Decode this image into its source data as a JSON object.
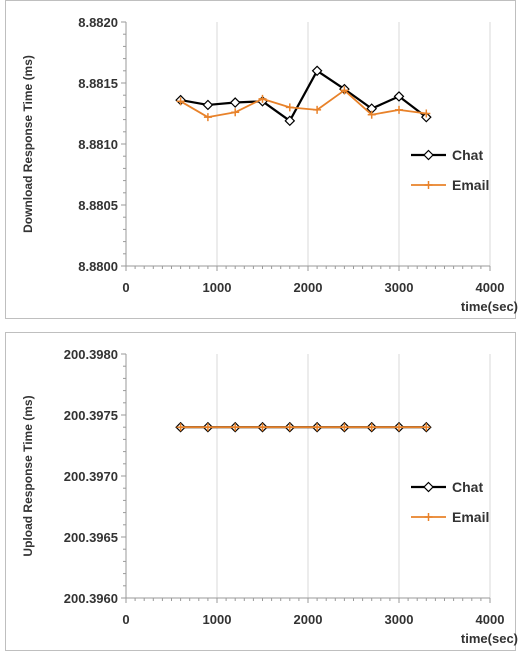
{
  "chart_data": [
    {
      "type": "line",
      "title": "",
      "xlabel": "time(sec)",
      "ylabel": "Download Response Time (ms)",
      "xlim": [
        0,
        4000
      ],
      "ylim": [
        8.88,
        8.882
      ],
      "x_ticks": [
        "0",
        "1000",
        "2000",
        "3000",
        "4000"
      ],
      "y_ticks": [
        "8.8800",
        "8.8805",
        "8.8810",
        "8.8815",
        "8.8820"
      ],
      "grid": "vertical",
      "legend": "right",
      "series": [
        {
          "name": "Chat",
          "color": "#000000",
          "marker": "diamond",
          "x": [
            600,
            900,
            1200,
            1500,
            1800,
            2100,
            2400,
            2700,
            3000,
            3300
          ],
          "values": [
            8.88136,
            8.88132,
            8.88134,
            8.88135,
            8.88119,
            8.8816,
            8.88145,
            8.88129,
            8.88139,
            8.88122
          ]
        },
        {
          "name": "Email",
          "color": "#e8822a",
          "marker": "plus",
          "x": [
            600,
            900,
            1200,
            1500,
            1800,
            2100,
            2400,
            2700,
            3000,
            3300
          ],
          "values": [
            8.88135,
            8.88122,
            8.88126,
            8.88137,
            8.8813,
            8.88128,
            8.88144,
            8.88124,
            8.88128,
            8.88125
          ]
        }
      ]
    },
    {
      "type": "line",
      "title": "",
      "xlabel": "time(sec)",
      "ylabel": "Upload Response Time (ms)",
      "xlim": [
        0,
        4000
      ],
      "ylim": [
        200.396,
        200.398
      ],
      "x_ticks": [
        "0",
        "1000",
        "2000",
        "3000",
        "4000"
      ],
      "y_ticks": [
        "200.3960",
        "200.3965",
        "200.3970",
        "200.3975",
        "200.3980"
      ],
      "grid": "vertical",
      "legend": "right",
      "series": [
        {
          "name": "Chat",
          "color": "#000000",
          "marker": "diamond",
          "x": [
            600,
            900,
            1200,
            1500,
            1800,
            2100,
            2400,
            2700,
            3000,
            3300
          ],
          "values": [
            200.3974,
            200.3974,
            200.3974,
            200.3974,
            200.3974,
            200.3974,
            200.3974,
            200.3974,
            200.3974,
            200.3974
          ]
        },
        {
          "name": "Email",
          "color": "#e8822a",
          "marker": "plus",
          "x": [
            600,
            900,
            1200,
            1500,
            1800,
            2100,
            2400,
            2700,
            3000,
            3300
          ],
          "values": [
            200.3974,
            200.3974,
            200.3974,
            200.3974,
            200.3974,
            200.3974,
            200.3974,
            200.3974,
            200.3974,
            200.3974
          ]
        }
      ]
    }
  ]
}
